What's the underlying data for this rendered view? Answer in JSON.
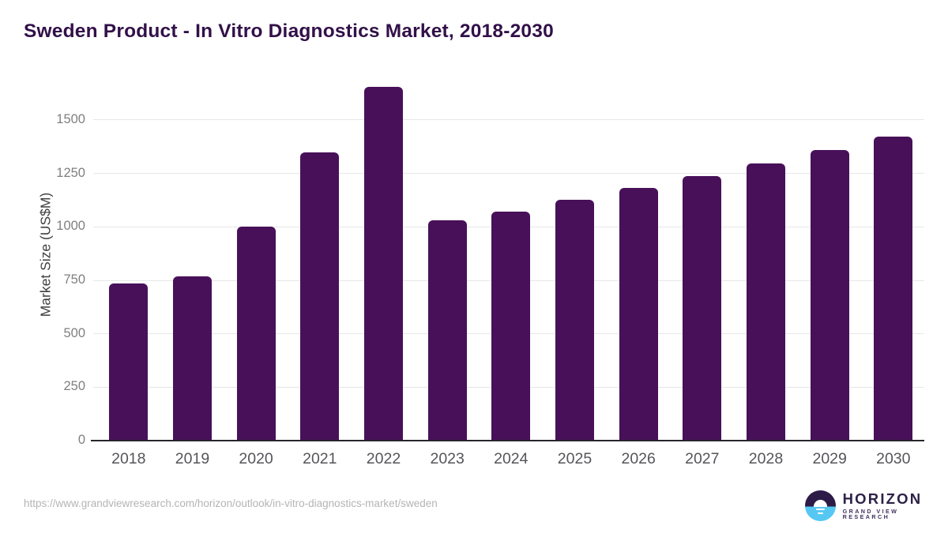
{
  "title": "Sweden Product - In Vitro Diagnostics Market, 2018-2030",
  "footer": {
    "source_url": "https://www.grandviewresearch.com/horizon/outlook/in-vitro-diagnostics-market/sweden"
  },
  "logo": {
    "brand": "HORIZON",
    "sub_brand": "GRAND VIEW RESEARCH"
  },
  "colors": {
    "bar": "#481059",
    "title_text": "#321048",
    "axis_line": "#26262b",
    "gridline": "#e7e7e7",
    "y_tick_text": "#7f7f7f",
    "x_tick_text": "#55555a",
    "footer_text": "#b4b4b4",
    "logo_dark_purple": "#2e1a47",
    "logo_light_blue": "#56c7f3"
  },
  "chart_data": {
    "type": "bar",
    "title": "Sweden Product - In Vitro Diagnostics Market, 2018-2030",
    "categories": [
      "2018",
      "2019",
      "2020",
      "2021",
      "2022",
      "2023",
      "2024",
      "2025",
      "2026",
      "2027",
      "2028",
      "2029",
      "2030"
    ],
    "values": [
      735,
      767,
      1000,
      1348,
      1655,
      1030,
      1073,
      1127,
      1183,
      1239,
      1297,
      1358,
      1423
    ],
    "xlabel": "",
    "ylabel": "Market Size (US$M)",
    "ylim": [
      0,
      1692
    ],
    "yticks": [
      0,
      250,
      500,
      750,
      1000,
      1250,
      1500
    ],
    "grid": true,
    "legend": false,
    "bar_color": "#481059"
  }
}
